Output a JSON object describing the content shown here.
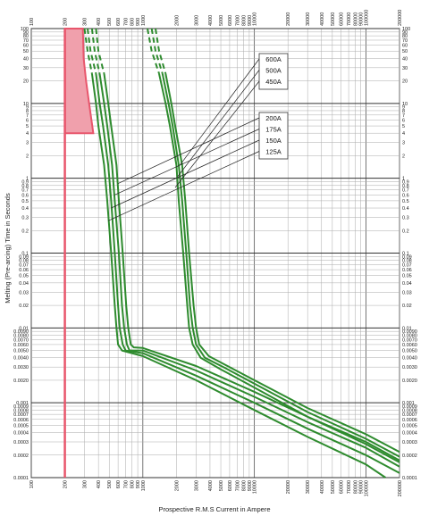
{
  "chart_data": {
    "type": "line",
    "title": "",
    "xlabel": "Prospective R.M.S Current in Ampere",
    "ylabel": "Melting (Pre-arcing) Time in Seconds",
    "xscale": "log",
    "yscale": "log",
    "xlim": [
      100,
      200000
    ],
    "ylim": [
      0.0001,
      100
    ],
    "grid": true,
    "x_tick_labels": [
      "100",
      "200",
      "300",
      "400",
      "500",
      "600",
      "700",
      "800",
      "900",
      "1000",
      "2000",
      "3000",
      "4000",
      "5000",
      "6000",
      "7000",
      "8000",
      "9000",
      "10000",
      "20000",
      "30000",
      "40000",
      "50000",
      "60000",
      "70000",
      "80000",
      "90000",
      "100000",
      "200000"
    ],
    "y_tick_labels": [
      {
        "value": 100,
        "label": "100"
      },
      {
        "value": 90,
        "label": "90"
      },
      {
        "value": 80,
        "label": "80"
      },
      {
        "value": 70,
        "label": "70"
      },
      {
        "value": 60,
        "label": "60"
      },
      {
        "value": 50,
        "label": "50"
      },
      {
        "value": 40,
        "label": "40"
      },
      {
        "value": 30,
        "label": "30"
      },
      {
        "value": 20,
        "label": "20"
      },
      {
        "value": 10,
        "label": "10"
      },
      {
        "value": 9,
        "label": "9"
      },
      {
        "value": 8,
        "label": "8"
      },
      {
        "value": 7,
        "label": "7"
      },
      {
        "value": 6,
        "label": "6"
      },
      {
        "value": 5,
        "label": "5"
      },
      {
        "value": 4,
        "label": "4"
      },
      {
        "value": 3,
        "label": "3"
      },
      {
        "value": 2,
        "label": "2"
      },
      {
        "value": 1,
        "label": "1"
      },
      {
        "value": 0.9,
        "label": "0.9"
      },
      {
        "value": 0.8,
        "label": "0.8"
      },
      {
        "value": 0.7,
        "label": "0.7"
      },
      {
        "value": 0.6,
        "label": "0.6"
      },
      {
        "value": 0.5,
        "label": "0.5"
      },
      {
        "value": 0.4,
        "label": "0.4"
      },
      {
        "value": 0.3,
        "label": "0.3"
      },
      {
        "value": 0.2,
        "label": "0.2"
      },
      {
        "value": 0.1,
        "label": "0.1"
      },
      {
        "value": 0.09,
        "label": "0.09"
      },
      {
        "value": 0.08,
        "label": "0.08"
      },
      {
        "value": 0.07,
        "label": "0.07"
      },
      {
        "value": 0.06,
        "label": "0.06"
      },
      {
        "value": 0.05,
        "label": "0.05"
      },
      {
        "value": 0.04,
        "label": "0.04"
      },
      {
        "value": 0.03,
        "label": "0.03"
      },
      {
        "value": 0.02,
        "label": "0.02"
      },
      {
        "value": 0.01,
        "label": "0.01"
      },
      {
        "value": 0.009,
        "label": "0.0090"
      },
      {
        "value": 0.008,
        "label": "0.0080"
      },
      {
        "value": 0.007,
        "label": "0.0070"
      },
      {
        "value": 0.006,
        "label": "0.0060"
      },
      {
        "value": 0.005,
        "label": "0.0050"
      },
      {
        "value": 0.004,
        "label": "0.0040"
      },
      {
        "value": 0.003,
        "label": "0.0030"
      },
      {
        "value": 0.002,
        "label": "0.0020"
      },
      {
        "value": 0.001,
        "label": "0.001"
      },
      {
        "value": 0.0009,
        "label": "0.0009"
      },
      {
        "value": 0.0008,
        "label": "0.0008"
      },
      {
        "value": 0.0007,
        "label": "0.0007"
      },
      {
        "value": 0.0006,
        "label": "0.0006"
      },
      {
        "value": 0.0005,
        "label": "0.0005"
      },
      {
        "value": 0.0004,
        "label": "0.0004"
      },
      {
        "value": 0.0003,
        "label": "0.0003"
      },
      {
        "value": 0.0002,
        "label": "0.0002"
      },
      {
        "value": 0.0001,
        "label": "0.0001"
      }
    ],
    "series": [
      {
        "name": "125A",
        "points": [
          [
            300,
            100
          ],
          [
            320,
            50
          ],
          [
            350,
            25
          ],
          [
            380,
            10
          ],
          [
            400,
            5
          ],
          [
            450,
            1.5
          ],
          [
            480,
            0.5
          ],
          [
            520,
            0.1
          ],
          [
            560,
            0.02
          ],
          [
            580,
            0.01
          ],
          [
            600,
            0.006
          ],
          [
            650,
            0.005
          ],
          [
            1000,
            0.0042
          ],
          [
            3000,
            0.002
          ],
          [
            10000,
            0.0008
          ],
          [
            30000,
            0.00035
          ],
          [
            100000,
            0.00015
          ],
          [
            150000,
            0.0001
          ]
        ]
      },
      {
        "name": "150A",
        "points": [
          [
            320,
            100
          ],
          [
            340,
            50
          ],
          [
            380,
            25
          ],
          [
            410,
            10
          ],
          [
            440,
            5
          ],
          [
            490,
            1.5
          ],
          [
            520,
            0.5
          ],
          [
            560,
            0.1
          ],
          [
            600,
            0.02
          ],
          [
            620,
            0.01
          ],
          [
            660,
            0.006
          ],
          [
            700,
            0.005
          ],
          [
            1000,
            0.0046
          ],
          [
            3000,
            0.0023
          ],
          [
            10000,
            0.001
          ],
          [
            30000,
            0.00045
          ],
          [
            100000,
            0.0002
          ],
          [
            200000,
            0.000115
          ]
        ]
      },
      {
        "name": "175A",
        "points": [
          [
            350,
            100
          ],
          [
            370,
            50
          ],
          [
            410,
            25
          ],
          [
            450,
            10
          ],
          [
            480,
            5
          ],
          [
            530,
            1.5
          ],
          [
            560,
            0.5
          ],
          [
            610,
            0.1
          ],
          [
            650,
            0.02
          ],
          [
            680,
            0.01
          ],
          [
            720,
            0.006
          ],
          [
            760,
            0.005
          ],
          [
            1000,
            0.005
          ],
          [
            3000,
            0.0027
          ],
          [
            10000,
            0.0012
          ],
          [
            30000,
            0.00055
          ],
          [
            100000,
            0.00025
          ],
          [
            200000,
            0.00014
          ]
        ]
      },
      {
        "name": "200A",
        "points": [
          [
            380,
            100
          ],
          [
            400,
            50
          ],
          [
            450,
            25
          ],
          [
            490,
            10
          ],
          [
            520,
            5
          ],
          [
            580,
            1.5
          ],
          [
            610,
            0.5
          ],
          [
            660,
            0.1
          ],
          [
            710,
            0.02
          ],
          [
            740,
            0.01
          ],
          [
            780,
            0.006
          ],
          [
            830,
            0.0055
          ],
          [
            1000,
            0.0054
          ],
          [
            3000,
            0.0031
          ],
          [
            10000,
            0.0014
          ],
          [
            30000,
            0.00065
          ],
          [
            100000,
            0.0003
          ],
          [
            200000,
            0.00017
          ]
        ]
      },
      {
        "name": "450A",
        "points": [
          [
            1100,
            100
          ],
          [
            1200,
            50
          ],
          [
            1400,
            25
          ],
          [
            1600,
            10
          ],
          [
            1750,
            5
          ],
          [
            2000,
            1.5
          ],
          [
            2100,
            0.5
          ],
          [
            2300,
            0.1
          ],
          [
            2500,
            0.02
          ],
          [
            2600,
            0.01
          ],
          [
            2800,
            0.006
          ],
          [
            3300,
            0.004
          ],
          [
            5000,
            0.0028
          ],
          [
            10000,
            0.0016
          ],
          [
            30000,
            0.00065
          ],
          [
            100000,
            0.00028
          ],
          [
            200000,
            0.00016
          ]
        ]
      },
      {
        "name": "500A",
        "points": [
          [
            1200,
            100
          ],
          [
            1300,
            50
          ],
          [
            1500,
            25
          ],
          [
            1700,
            10
          ],
          [
            1850,
            5
          ],
          [
            2100,
            1.5
          ],
          [
            2250,
            0.5
          ],
          [
            2450,
            0.1
          ],
          [
            2650,
            0.02
          ],
          [
            2800,
            0.01
          ],
          [
            3000,
            0.006
          ],
          [
            3600,
            0.004
          ],
          [
            5500,
            0.0029
          ],
          [
            10000,
            0.0018
          ],
          [
            30000,
            0.00075
          ],
          [
            100000,
            0.00033
          ],
          [
            200000,
            0.00019
          ]
        ]
      },
      {
        "name": "600A",
        "points": [
          [
            1300,
            100
          ],
          [
            1400,
            50
          ],
          [
            1600,
            25
          ],
          [
            1800,
            10
          ],
          [
            1950,
            5
          ],
          [
            2250,
            1.5
          ],
          [
            2400,
            0.5
          ],
          [
            2600,
            0.1
          ],
          [
            2850,
            0.02
          ],
          [
            3000,
            0.01
          ],
          [
            3200,
            0.006
          ],
          [
            3900,
            0.0042
          ],
          [
            6000,
            0.003
          ],
          [
            10000,
            0.002
          ],
          [
            30000,
            0.00085
          ],
          [
            100000,
            0.00038
          ],
          [
            200000,
            0.00022
          ]
        ]
      }
    ],
    "legend": {
      "group_top": [
        "600A",
        "500A",
        "450A"
      ],
      "group_bottom": [
        "200A",
        "175A",
        "150A",
        "125A"
      ]
    },
    "colors": {
      "series": "#2e8b2e",
      "highlight": "#e8566c",
      "highlight_fill": "#f0a0ac",
      "grid": "#888888"
    }
  }
}
